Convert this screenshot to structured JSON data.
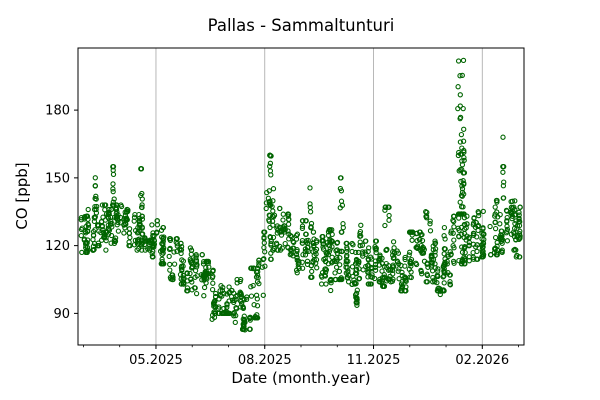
{
  "chart_data": {
    "type": "scatter",
    "title": "Pallas - Sammaltunturi",
    "xlabel": "Date (month.year)",
    "ylabel": "CO [ppb]",
    "x_axis": {
      "unit": "months since 03.2025",
      "xlim_months": [
        -0.15,
        12.15
      ],
      "major_tick_months": [
        2,
        5,
        8,
        11
      ],
      "major_tick_labels": [
        "05.2025",
        "08.2025",
        "11.2025",
        "02.2026"
      ],
      "minor_tick_months": [
        0,
        1,
        2,
        3,
        4,
        5,
        6,
        7,
        8,
        9,
        10,
        11,
        12
      ]
    },
    "y_axis": {
      "ylim": [
        76,
        207.5
      ],
      "ticks": [
        90,
        120,
        150,
        180
      ],
      "tick_labels": [
        "90",
        "120",
        "150",
        "180"
      ]
    },
    "grid": {
      "vertical_major": true,
      "horizontal": false
    },
    "marker": {
      "shape": "open-circle",
      "radius_px": 2.1,
      "stroke_px": 1.1
    },
    "style": {
      "marker_color": "#006400",
      "grid_color": "#b0b0b0",
      "spine_color": "#000000",
      "background": "#ffffff"
    },
    "bands_month_lo_hi_n": [
      [
        -0.14,
        0.1,
        117,
        133,
        28
      ],
      [
        0.1,
        0.35,
        118,
        136,
        28
      ],
      [
        0.35,
        0.6,
        120,
        138,
        28
      ],
      [
        0.6,
        0.85,
        118,
        136,
        28
      ],
      [
        0.85,
        1.1,
        121,
        138,
        28
      ],
      [
        1.1,
        1.35,
        120,
        136,
        28
      ],
      [
        1.35,
        1.6,
        118,
        135,
        28
      ],
      [
        1.6,
        1.85,
        118,
        133,
        28
      ],
      [
        1.85,
        2.1,
        115,
        131,
        28
      ],
      [
        2.1,
        2.35,
        112,
        128,
        28
      ],
      [
        2.35,
        2.6,
        105,
        123,
        28
      ],
      [
        2.6,
        2.85,
        103,
        121,
        28
      ],
      [
        2.85,
        3.1,
        100,
        119,
        28
      ],
      [
        3.1,
        3.35,
        97,
        116,
        28
      ],
      [
        3.35,
        3.6,
        94,
        113,
        28
      ],
      [
        3.6,
        3.85,
        90,
        110,
        28
      ],
      [
        3.85,
        4.1,
        90,
        108,
        28
      ],
      [
        4.1,
        4.35,
        86,
        105,
        28
      ],
      [
        4.35,
        4.6,
        83,
        103,
        28
      ],
      [
        4.6,
        4.8,
        88,
        110,
        24
      ],
      [
        4.8,
        5.0,
        98,
        126,
        24
      ],
      [
        5.0,
        5.2,
        114,
        148,
        24
      ],
      [
        5.2,
        5.45,
        118,
        148,
        28
      ],
      [
        5.45,
        5.7,
        112,
        134,
        28
      ],
      [
        5.7,
        5.95,
        108,
        128,
        28
      ],
      [
        5.95,
        6.2,
        110,
        131,
        28
      ],
      [
        6.2,
        6.45,
        106,
        126,
        28
      ],
      [
        6.45,
        6.7,
        103,
        124,
        28
      ],
      [
        6.7,
        6.95,
        106,
        127,
        28
      ],
      [
        6.95,
        7.2,
        105,
        126,
        28
      ],
      [
        7.2,
        7.45,
        100,
        121,
        28
      ],
      [
        7.45,
        7.7,
        96,
        117,
        28
      ],
      [
        7.7,
        7.95,
        103,
        122,
        28
      ],
      [
        7.95,
        8.2,
        104,
        122,
        28
      ],
      [
        8.2,
        8.45,
        102,
        121,
        28
      ],
      [
        8.45,
        8.7,
        104,
        124,
        28
      ],
      [
        8.7,
        8.95,
        100,
        122,
        28
      ],
      [
        8.95,
        9.2,
        104,
        126,
        28
      ],
      [
        9.2,
        9.45,
        106,
        126,
        28
      ],
      [
        9.45,
        9.7,
        104,
        124,
        28
      ],
      [
        9.7,
        9.95,
        100,
        122,
        28
      ],
      [
        9.95,
        10.2,
        108,
        128,
        28
      ],
      [
        10.2,
        10.45,
        112,
        133,
        28
      ],
      [
        10.45,
        10.7,
        112,
        134,
        28
      ],
      [
        10.7,
        10.95,
        114,
        135,
        28
      ],
      [
        10.95,
        11.2,
        115,
        136,
        28
      ],
      [
        11.2,
        11.45,
        116,
        140,
        28
      ],
      [
        11.45,
        11.7,
        117,
        140,
        28
      ],
      [
        11.7,
        11.95,
        118,
        142,
        28
      ],
      [
        11.95,
        12.14,
        115,
        137,
        24
      ]
    ],
    "spikes_month_lo_hi_n": [
      [
        0.3,
        0.38,
        136,
        152,
        10
      ],
      [
        0.78,
        0.86,
        138,
        155,
        12
      ],
      [
        1.54,
        1.62,
        135,
        154,
        11
      ],
      [
        3.55,
        3.62,
        87,
        95,
        8
      ],
      [
        4.4,
        4.52,
        79,
        86,
        10
      ],
      [
        5.05,
        5.18,
        148,
        160,
        9
      ],
      [
        6.2,
        6.28,
        128,
        146,
        9
      ],
      [
        6.78,
        6.85,
        99,
        105,
        6
      ],
      [
        7.08,
        7.16,
        128,
        150,
        9
      ],
      [
        7.5,
        7.6,
        92,
        97,
        7
      ],
      [
        7.62,
        7.7,
        120,
        138,
        8
      ],
      [
        8.3,
        8.42,
        124,
        137,
        9
      ],
      [
        9.42,
        9.58,
        124,
        135,
        8
      ],
      [
        9.78,
        9.85,
        97,
        102,
        6
      ],
      [
        10.05,
        10.12,
        100,
        107,
        6
      ],
      [
        10.33,
        10.5,
        134,
        202,
        55
      ],
      [
        11.55,
        11.63,
        138,
        155,
        8
      ]
    ],
    "outliers_month_value": [
      [
        11.57,
        168
      ]
    ]
  }
}
